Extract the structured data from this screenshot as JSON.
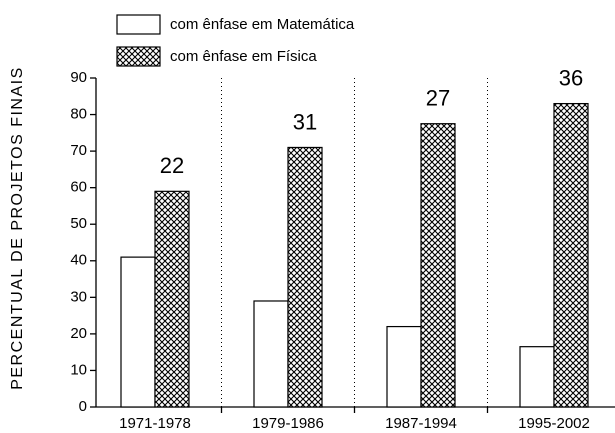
{
  "chart_data": {
    "type": "bar",
    "ylabel": "PERCENTUAL DE PROJETOS FINAIS",
    "categories": [
      "1971-1978",
      "1979-1986",
      "1987-1994",
      "1995-2002"
    ],
    "series": [
      {
        "name": "com ênfase em Matemática",
        "color": "#ffffff",
        "pattern": "none",
        "values": [
          41,
          29,
          22,
          16.5
        ]
      },
      {
        "name": "com ênfase em Física",
        "color": "#ffffff",
        "pattern": "crosshatch",
        "values": [
          59,
          71,
          77.5,
          83
        ]
      }
    ],
    "annotations": [
      22,
      31,
      27,
      36
    ],
    "ylim": [
      0,
      90
    ],
    "yticks": [
      0,
      10,
      20,
      30,
      40,
      50,
      60,
      70,
      80,
      90
    ],
    "separators": true,
    "legend": "top-left"
  }
}
